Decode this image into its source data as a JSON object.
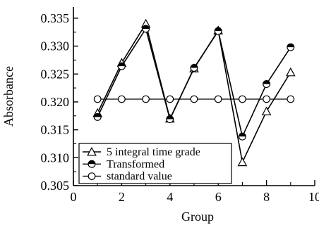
{
  "chart_data": {
    "type": "line",
    "xlabel": "Group",
    "ylabel": "Absorbance",
    "xlim": [
      0,
      10
    ],
    "ylim": [
      0.305,
      0.337
    ],
    "x_ticks": [
      0,
      2,
      4,
      6,
      8,
      10
    ],
    "y_ticks": [
      0.305,
      0.31,
      0.315,
      0.32,
      0.325,
      0.33,
      0.335
    ],
    "x_tick_labels": [
      "0",
      "2",
      "4",
      "6",
      "8",
      "10"
    ],
    "y_tick_labels": [
      "0.305",
      "0.310",
      "0.315",
      "0.320",
      "0.325",
      "0.330",
      "0.335"
    ],
    "legend_position": "bottom-left",
    "grid": false,
    "series": [
      {
        "name": "5 integral time grade",
        "marker": "triangle",
        "x": [
          1,
          2,
          3,
          4,
          5,
          6,
          7,
          8,
          9
        ],
        "y": [
          0.318,
          0.327,
          0.334,
          0.317,
          0.326,
          0.3328,
          0.3092,
          0.3183,
          0.3253
        ]
      },
      {
        "name": "Transformed",
        "marker": "half-filled-circle",
        "x": [
          1,
          2,
          3,
          4,
          5,
          6,
          7,
          8,
          9
        ],
        "y": [
          0.3173,
          0.3264,
          0.3331,
          0.3169,
          0.3261,
          0.3327,
          0.3138,
          0.3232,
          0.3298
        ]
      },
      {
        "name": "standard value",
        "marker": "open-circle",
        "x": [
          1,
          2,
          3,
          4,
          5,
          6,
          7,
          8,
          9
        ],
        "y": [
          0.3205,
          0.3205,
          0.3205,
          0.3205,
          0.3205,
          0.3205,
          0.3205,
          0.3205,
          0.3205
        ]
      }
    ]
  }
}
